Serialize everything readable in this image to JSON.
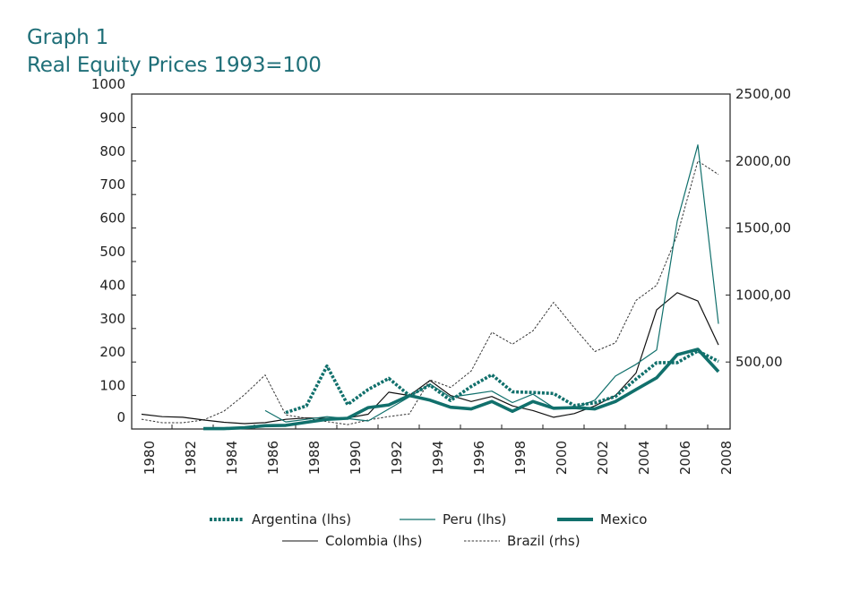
{
  "chart_data": {
    "type": "line",
    "title": "Graph 1",
    "subtitle": "Real Equity Prices 1993=100",
    "xlabel": "",
    "ylabel_left": "",
    "ylabel_right": "",
    "x": [
      1980,
      1981,
      1982,
      1983,
      1984,
      1985,
      1986,
      1987,
      1988,
      1989,
      1990,
      1991,
      1992,
      1993,
      1994,
      1995,
      1996,
      1997,
      1998,
      1999,
      2000,
      2001,
      2002,
      2003,
      2004,
      2005,
      2006,
      2007,
      2008
    ],
    "xticks": [
      "1980",
      "1982",
      "1984",
      "1986",
      "1988",
      "1990",
      "1992",
      "1994",
      "1996",
      "1998",
      "2000",
      "2002",
      "2004",
      "2006",
      "2008"
    ],
    "ylim_left": [
      0,
      1000
    ],
    "yticks_left": [
      "0",
      "100",
      "200",
      "300",
      "400",
      "500",
      "600",
      "700",
      "800",
      "900",
      "1000"
    ],
    "ylim_right": [
      0,
      2500
    ],
    "yticks_right": [
      "500,00",
      "1000,00",
      "1500,00",
      "2000,00",
      "2500,00"
    ],
    "grid": false,
    "legend_position": "bottom",
    "series": [
      {
        "name": "Argentina (lhs)",
        "axis": "left",
        "style": "dotted-thick",
        "color": "#11706c",
        "values": [
          null,
          null,
          null,
          null,
          null,
          null,
          null,
          49,
          69,
          188,
          73,
          118,
          151,
          100,
          131,
          85,
          127,
          162,
          111,
          109,
          106,
          70,
          78,
          97,
          149,
          198,
          198,
          233,
          202
        ]
      },
      {
        "name": "Peru (lhs)",
        "axis": "left",
        "style": "solid-thin",
        "color": "#11706c",
        "values": [
          null,
          null,
          null,
          null,
          null,
          null,
          55,
          21,
          29,
          37,
          31,
          24,
          60,
          96,
          134,
          95,
          104,
          113,
          79,
          104,
          64,
          62,
          86,
          158,
          193,
          236,
          621,
          848,
          314
        ]
      },
      {
        "name": "Mexico",
        "axis": "left",
        "style": "solid-thick",
        "color": "#11706c",
        "values": [
          null,
          null,
          null,
          1,
          1,
          4,
          10,
          11,
          20,
          29,
          32,
          64,
          72,
          100,
          86,
          65,
          60,
          82,
          53,
          82,
          62,
          64,
          60,
          82,
          118,
          153,
          222,
          238,
          171
        ]
      },
      {
        "name": "Colombia (lhs)",
        "axis": "left",
        "style": "solid-thin",
        "color": "#111111",
        "values": [
          44,
          37,
          35,
          27,
          20,
          16,
          19,
          29,
          33,
          32,
          33,
          44,
          110,
          100,
          145,
          100,
          82,
          97,
          69,
          55,
          35,
          46,
          69,
          100,
          167,
          356,
          407,
          382,
          251
        ]
      },
      {
        "name": "Brazil (rhs)",
        "axis": "right",
        "style": "dashed-thin",
        "color": "#333333",
        "values": [
          73,
          47,
          47,
          67,
          133,
          256,
          403,
          105,
          80,
          55,
          33,
          67,
          93,
          113,
          367,
          310,
          433,
          722,
          633,
          733,
          945,
          756,
          578,
          643,
          960,
          1073,
          1447,
          2000,
          1900
        ]
      }
    ]
  },
  "legend": {
    "argentina": "Argentina (lhs)",
    "peru": "Peru (lhs)",
    "mexico": "Mexico",
    "colombia": "Colombia (lhs)",
    "brazil": "Brazil (rhs)"
  }
}
